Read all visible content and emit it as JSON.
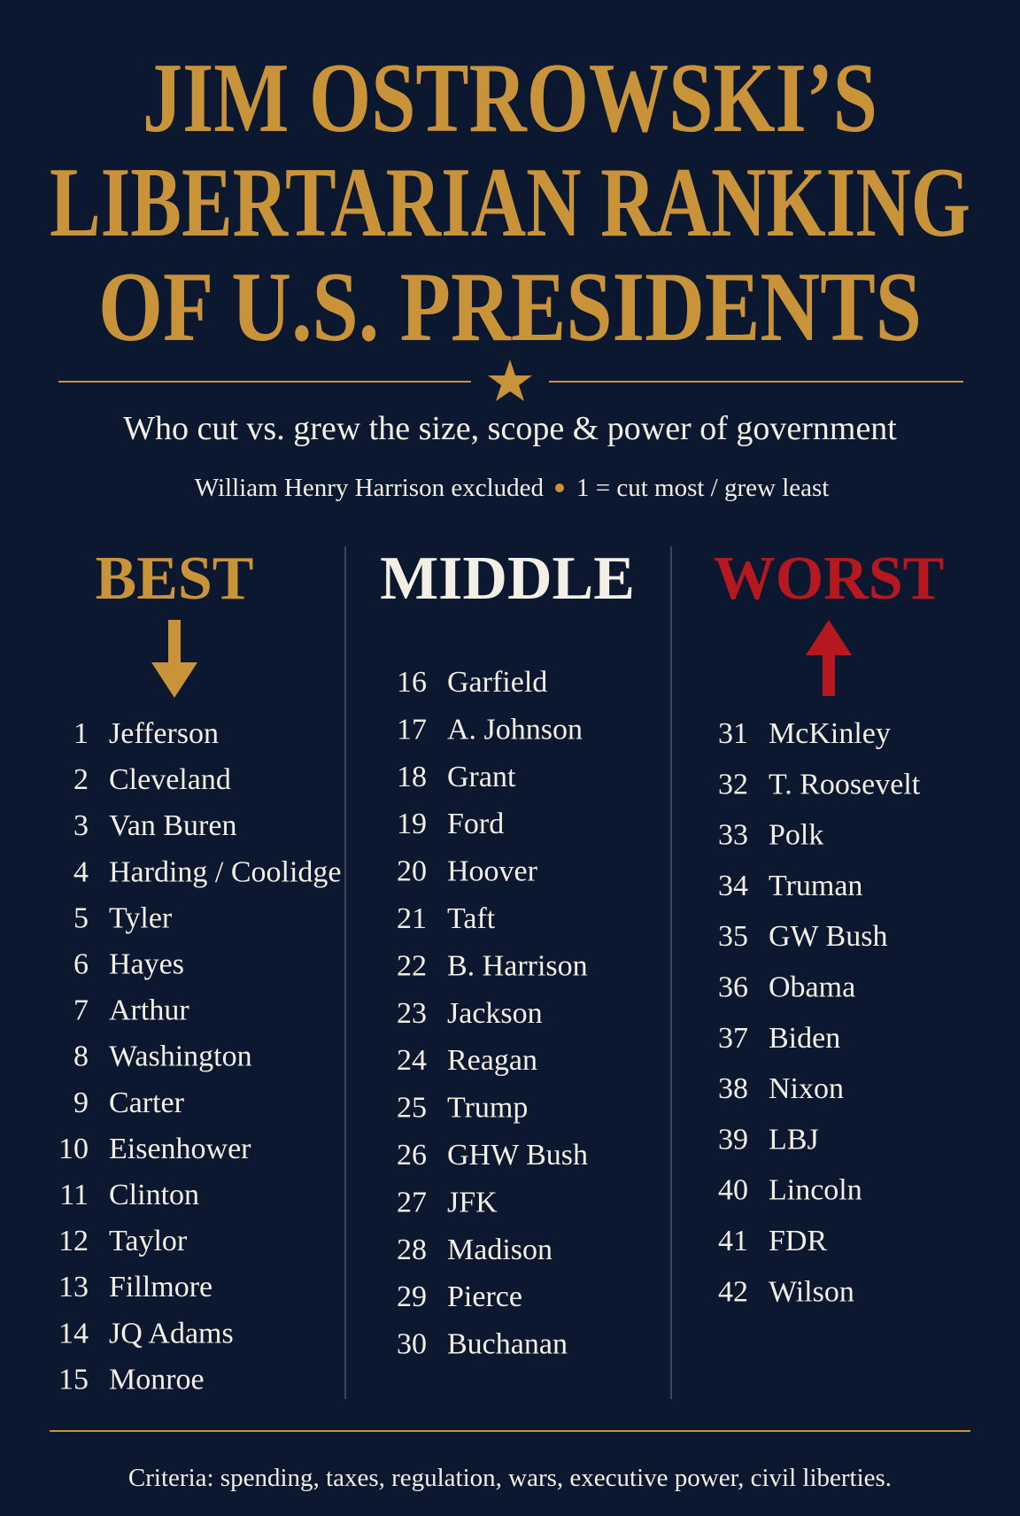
{
  "header": {
    "title": [
      "JIM OSTROWSKI’S",
      "LIBERTARIAN RANKING",
      "OF U.S. PRESIDENTS"
    ],
    "subtitle": "Who cut vs. grew the size, scope & power of government",
    "notes": [
      "William Henry Harrison excluded",
      "1 = cut most / grew least"
    ]
  },
  "columns": [
    {
      "heading": "BEST",
      "entries": [
        {
          "rank": 1,
          "name": "Jefferson"
        },
        {
          "rank": 2,
          "name": "Cleveland"
        },
        {
          "rank": 3,
          "name": "Van Buren"
        },
        {
          "rank": 4,
          "name": "Harding / Coolidge"
        },
        {
          "rank": 5,
          "name": "Tyler"
        },
        {
          "rank": 6,
          "name": "Hayes"
        },
        {
          "rank": 7,
          "name": "Arthur"
        },
        {
          "rank": 8,
          "name": "Washington"
        },
        {
          "rank": 9,
          "name": "Carter"
        },
        {
          "rank": 10,
          "name": "Eisenhower"
        },
        {
          "rank": 11,
          "name": "Clinton"
        },
        {
          "rank": 12,
          "name": "Taylor"
        },
        {
          "rank": 13,
          "name": "Fillmore"
        },
        {
          "rank": 14,
          "name": "JQ Adams"
        },
        {
          "rank": 15,
          "name": "Monroe"
        }
      ]
    },
    {
      "heading": "MIDDLE",
      "entries": [
        {
          "rank": 16,
          "name": "Garfield"
        },
        {
          "rank": 17,
          "name": "A. Johnson"
        },
        {
          "rank": 18,
          "name": "Grant"
        },
        {
          "rank": 19,
          "name": "Ford"
        },
        {
          "rank": 20,
          "name": "Hoover"
        },
        {
          "rank": 21,
          "name": "Taft"
        },
        {
          "rank": 22,
          "name": "B. Harrison"
        },
        {
          "rank": 23,
          "name": "Jackson"
        },
        {
          "rank": 24,
          "name": "Reagan"
        },
        {
          "rank": 25,
          "name": "Trump"
        },
        {
          "rank": 26,
          "name": "GHW Bush"
        },
        {
          "rank": 27,
          "name": "JFK"
        },
        {
          "rank": 28,
          "name": "Madison"
        },
        {
          "rank": 29,
          "name": "Pierce"
        },
        {
          "rank": 30,
          "name": "Buchanan"
        }
      ]
    },
    {
      "heading": "WORST",
      "entries": [
        {
          "rank": 31,
          "name": "McKinley"
        },
        {
          "rank": 32,
          "name": "T. Roosevelt"
        },
        {
          "rank": 33,
          "name": "Polk"
        },
        {
          "rank": 34,
          "name": "Truman"
        },
        {
          "rank": 35,
          "name": "GW Bush"
        },
        {
          "rank": 36,
          "name": "Obama"
        },
        {
          "rank": 37,
          "name": "Biden"
        },
        {
          "rank": 38,
          "name": "Nixon"
        },
        {
          "rank": 39,
          "name": "LBJ"
        },
        {
          "rank": 40,
          "name": "Lincoln"
        },
        {
          "rank": 41,
          "name": "FDR"
        },
        {
          "rank": 42,
          "name": "Wilson"
        }
      ]
    }
  ],
  "footer": "Criteria: spending, taxes, regulation, wars, executive power, civil liberties."
}
